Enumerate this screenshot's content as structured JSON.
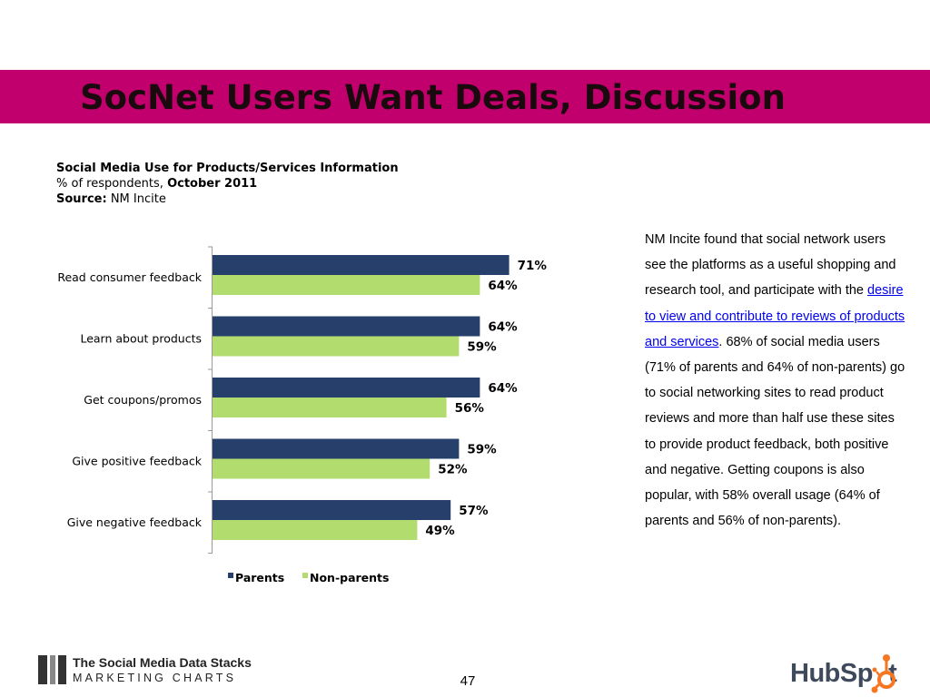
{
  "slide": {
    "title": "SocNet Users Want Deals, Discussion",
    "page_number": "47"
  },
  "chart_header": {
    "line1": "Social Media Use for Products/Services Information",
    "line2_prefix": "% of respondents,",
    "line2_bold": "October 2011",
    "source_label": "Source:",
    "source_value": "NM Incite"
  },
  "chart_data": {
    "type": "bar",
    "orientation": "horizontal",
    "categories": [
      "Read consumer feedback",
      "Learn about products",
      "Get coupons/promos",
      "Give positive feedback",
      "Give negative feedback"
    ],
    "series": [
      {
        "name": "Parents",
        "color": "#26406b",
        "values": [
          71,
          64,
          64,
          59,
          57
        ],
        "labels": [
          "71%",
          "64%",
          "64%",
          "59%",
          "57%"
        ]
      },
      {
        "name": "Non-parents",
        "color": "#b3dc6e",
        "values": [
          64,
          59,
          56,
          52,
          49
        ],
        "labels": [
          "64%",
          "59%",
          "56%",
          "52%",
          "49%"
        ]
      }
    ],
    "xlim": [
      0,
      100
    ],
    "legend": "bottom",
    "grid": false
  },
  "side_text": {
    "part1": "NM Incite found that social network users see the platforms as a useful shopping and research tool, and participate with the ",
    "link": "desire to view and contribute to reviews of products and services",
    "part2": ". 68% of social media users (71% of parents and 64% of non-parents) go to social networking sites to read product reviews and more than half use these sites to provide product feedback, both positive and negative. Getting coupons is also popular, with 58% overall usage (64% of parents and 56% of non-parents)."
  },
  "footer": {
    "brand_line1": "The Social Media Data Stacks",
    "brand_line2": "MARKETING CHARTS",
    "logo_text": "HubSpot"
  }
}
